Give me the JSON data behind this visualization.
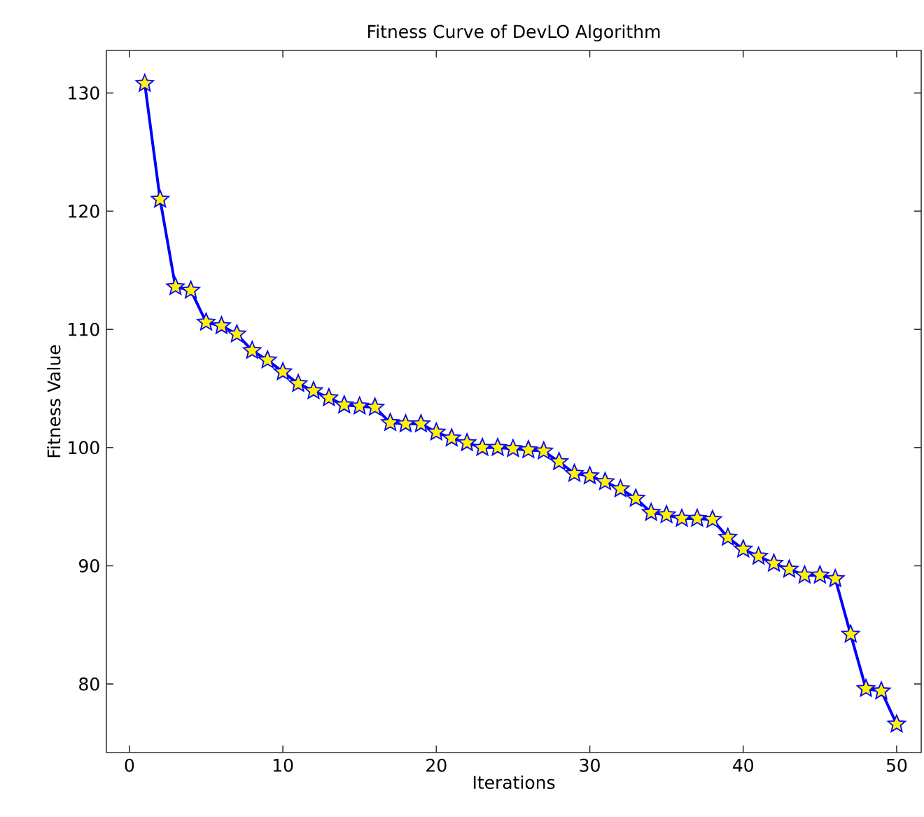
{
  "chart_data": {
    "type": "line",
    "title": "Fitness Curve of DevLO Algorithm",
    "xlabel": "Iterations",
    "ylabel": "Fitness Value",
    "x": [
      1,
      2,
      3,
      4,
      5,
      6,
      7,
      8,
      9,
      10,
      11,
      12,
      13,
      14,
      15,
      16,
      17,
      18,
      19,
      20,
      21,
      22,
      23,
      24,
      25,
      26,
      27,
      28,
      29,
      30,
      31,
      32,
      33,
      34,
      35,
      36,
      37,
      38,
      39,
      40,
      41,
      42,
      43,
      44,
      45,
      46,
      47,
      48,
      49,
      50
    ],
    "values": [
      130.8,
      121.0,
      113.6,
      113.3,
      110.6,
      110.3,
      109.6,
      108.2,
      107.4,
      106.4,
      105.4,
      104.8,
      104.2,
      103.6,
      103.5,
      103.4,
      102.1,
      102.0,
      102.0,
      101.3,
      100.8,
      100.4,
      100.0,
      100.0,
      99.9,
      99.8,
      99.7,
      98.8,
      97.8,
      97.6,
      97.1,
      96.5,
      95.7,
      94.5,
      94.3,
      94.0,
      94.0,
      93.9,
      92.4,
      91.4,
      90.8,
      90.2,
      89.7,
      89.2,
      89.2,
      88.9,
      84.2,
      79.6,
      79.4,
      76.6
    ],
    "color": "#0000ff",
    "marker": "star",
    "line_style": "solid",
    "xlim": [
      -1.5,
      51.6
    ],
    "ylim": [
      74.2,
      133.6
    ],
    "xticks": [
      0,
      10,
      20,
      30,
      40,
      50
    ],
    "yticks": [
      80,
      90,
      100,
      110,
      120,
      130
    ]
  }
}
